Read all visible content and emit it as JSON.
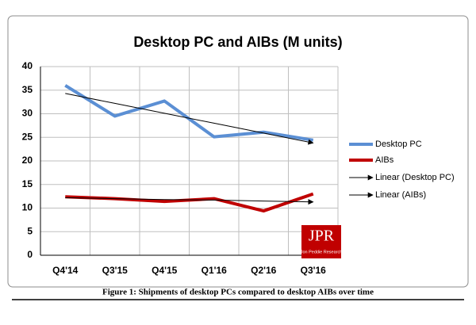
{
  "chart_data": {
    "type": "line",
    "title": "Desktop PC and AIBs (M units)",
    "categories": [
      "Q4'14",
      "Q3'15",
      "Q4'15",
      "Q1'16",
      "Q2'16",
      "Q3'16"
    ],
    "series": [
      {
        "name": "Desktop PC",
        "color": "#5b8fd4",
        "values": [
          36,
          29.5,
          32.7,
          25.1,
          26.1,
          24.4
        ]
      },
      {
        "name": "AIBs",
        "color": "#c00000",
        "values": [
          12.4,
          12.0,
          11.4,
          12.0,
          9.4,
          13.0
        ]
      }
    ],
    "trendlines": [
      {
        "name": "Linear (Desktop PC)",
        "color": "#000000",
        "values": [
          34.3,
          32.2,
          30.1,
          28.0,
          25.9,
          23.8
        ]
      },
      {
        "name": "Linear (AIBs)",
        "color": "#000000",
        "values": [
          12.2,
          12.0,
          11.8,
          11.7,
          11.5,
          11.3
        ]
      }
    ],
    "ylim": [
      0,
      40
    ],
    "yticks": [
      0,
      5,
      10,
      15,
      20,
      25,
      30,
      35,
      40
    ],
    "grid": true,
    "legend": "right",
    "logo": {
      "text": "JPR",
      "subtext": "Jon Peddie Research"
    },
    "caption": "Figure 1: Shipments of desktop PCs compared to desktop AIBs over time"
  }
}
